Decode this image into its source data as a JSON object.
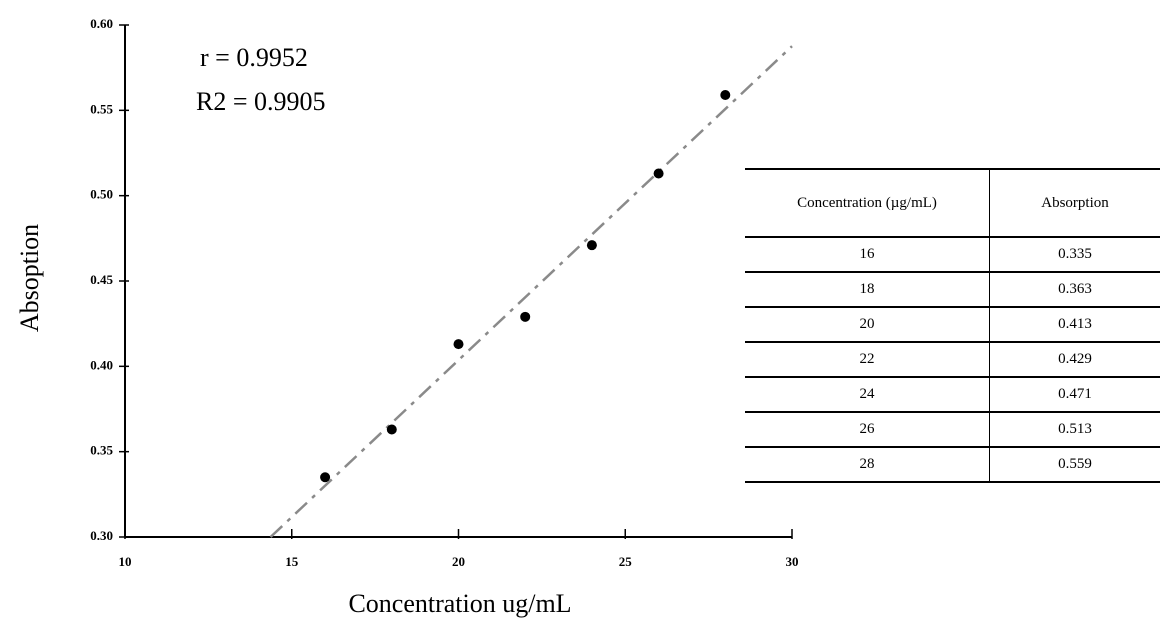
{
  "chart_data": {
    "type": "scatter",
    "annotations": [
      "r = 0.9952",
      "R2 = 0.9905"
    ],
    "x_label": "Concentration ug/mL",
    "y_label": "Absoption",
    "x": [
      16,
      18,
      20,
      22,
      24,
      26,
      28
    ],
    "values": [
      0.335,
      0.363,
      0.413,
      0.429,
      0.471,
      0.513,
      0.559
    ],
    "color": "#000000",
    "trendline": true,
    "trendline_color": "#8a8a8a",
    "xlim": [
      10,
      30
    ],
    "xticks": [
      10,
      15,
      20,
      25,
      30
    ],
    "ylim": [
      0.3,
      0.6
    ],
    "yticks": [
      {
        "value": 0.3,
        "label": "0.30"
      },
      {
        "value": 0.35,
        "label": "0.35"
      },
      {
        "value": 0.4,
        "label": "0.40"
      },
      {
        "value": 0.45,
        "label": "0.45"
      },
      {
        "value": 0.5,
        "label": "0.50"
      },
      {
        "value": 0.55,
        "label": "0.55"
      },
      {
        "value": 0.6,
        "label": "0.60"
      }
    ]
  },
  "table": {
    "headers": [
      "Concentration (µg/mL)",
      "Absorption"
    ],
    "rows": [
      [
        16,
        0.335
      ],
      [
        18,
        0.363
      ],
      [
        20,
        0.413
      ],
      [
        22,
        0.429
      ],
      [
        24,
        0.471
      ],
      [
        26,
        0.513
      ],
      [
        28,
        0.559
      ]
    ]
  }
}
